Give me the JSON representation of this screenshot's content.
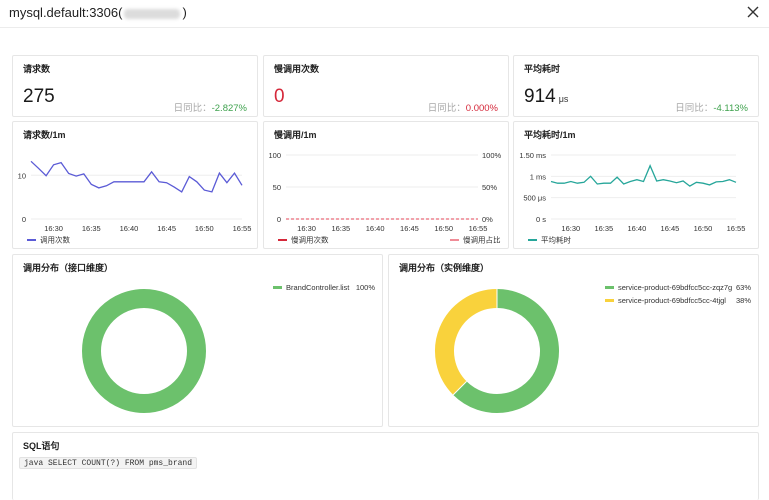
{
  "window": {
    "title_prefix": "mysql.default:3306(",
    "title_suffix": ")"
  },
  "stats": {
    "requests": {
      "title": "请求数",
      "value": "275",
      "unit": "",
      "compare_label": "日同比：",
      "compare_value": "-2.827%"
    },
    "slow_calls": {
      "title": "慢调用次数",
      "value": "0",
      "unit": "",
      "compare_label": "日同比：",
      "compare_value": "0.000%"
    },
    "avg_latency": {
      "title": "平均耗时",
      "value": "914",
      "unit": "μs",
      "compare_label": "日同比：",
      "compare_value": "-4.113%"
    }
  },
  "charts": {
    "requests_per_min": {
      "title": "请求数/1m",
      "legend": "调用次数"
    },
    "slow_per_min": {
      "title": "慢调用/1m",
      "legend_left": "慢调用次数",
      "legend_right": "慢调用占比"
    },
    "latency_per_min": {
      "title": "平均耗时/1m",
      "legend": "平均耗时"
    },
    "dist_interface": {
      "title": "调用分布（接口维度）"
    },
    "dist_instance": {
      "title": "调用分布（实例维度）"
    }
  },
  "chart_data": [
    {
      "type": "line",
      "name": "requests_per_min",
      "x": [
        "16:27",
        "16:28",
        "16:29",
        "16:30",
        "16:31",
        "16:32",
        "16:33",
        "16:34",
        "16:35",
        "16:36",
        "16:37",
        "16:38",
        "16:39",
        "16:40",
        "16:41",
        "16:42",
        "16:43",
        "16:44",
        "16:45",
        "16:46",
        "16:47",
        "16:48",
        "16:49",
        "16:50",
        "16:51",
        "16:52",
        "16:53",
        "16:54",
        "16:55"
      ],
      "xticks": [
        "16:30",
        "16:35",
        "16:40",
        "16:45",
        "16:50",
        "16:55"
      ],
      "series": [
        {
          "name": "调用次数",
          "color": "#5b5bd6",
          "values": [
            13.2,
            11.6,
            9.9,
            12.4,
            12.9,
            10.4,
            9.8,
            10.3,
            7.9,
            7.1,
            7.6,
            8.5,
            8.5,
            8.5,
            8.5,
            8.5,
            10.8,
            8.5,
            8.3,
            7.3,
            6.2,
            9.7,
            8.5,
            6.6,
            6.2,
            10.5,
            8.3,
            10.5,
            7.7
          ]
        }
      ],
      "yticks": [
        "0",
        "10"
      ],
      "ylim": [
        0,
        16
      ]
    },
    {
      "type": "line",
      "name": "slow_per_min",
      "x": [
        "16:27",
        "16:28",
        "16:29",
        "16:30",
        "16:31",
        "16:32",
        "16:33",
        "16:34",
        "16:35",
        "16:36",
        "16:37",
        "16:38",
        "16:39",
        "16:40",
        "16:41",
        "16:42",
        "16:43",
        "16:44",
        "16:45",
        "16:46",
        "16:47",
        "16:48",
        "16:49",
        "16:50",
        "16:51",
        "16:52",
        "16:53",
        "16:54",
        "16:55"
      ],
      "xticks": [
        "16:30",
        "16:35",
        "16:40",
        "16:45",
        "16:50",
        "16:55"
      ],
      "series": [
        {
          "name": "慢调用次数",
          "color": "#d5283a",
          "axis": "left",
          "values": [
            0,
            0,
            0,
            0,
            0,
            0,
            0,
            0,
            0,
            0,
            0,
            0,
            0,
            0,
            0,
            0,
            0,
            0,
            0,
            0,
            0,
            0,
            0,
            0,
            0,
            0,
            0,
            0,
            0
          ]
        },
        {
          "name": "慢调用占比",
          "color": "#f08c97",
          "axis": "right",
          "values": [
            0,
            0,
            0,
            0,
            0,
            0,
            0,
            0,
            0,
            0,
            0,
            0,
            0,
            0,
            0,
            0,
            0,
            0,
            0,
            0,
            0,
            0,
            0,
            0,
            0,
            0,
            0,
            0,
            0
          ]
        }
      ],
      "yticks_left": [
        "0",
        "50",
        "100"
      ],
      "yticks_right": [
        "0%",
        "50%",
        "100%"
      ],
      "ylim": [
        0,
        100
      ]
    },
    {
      "type": "line",
      "name": "latency_per_min",
      "x": [
        "16:27",
        "16:28",
        "16:29",
        "16:30",
        "16:31",
        "16:32",
        "16:33",
        "16:34",
        "16:35",
        "16:36",
        "16:37",
        "16:38",
        "16:39",
        "16:40",
        "16:41",
        "16:42",
        "16:43",
        "16:44",
        "16:45",
        "16:46",
        "16:47",
        "16:48",
        "16:49",
        "16:50",
        "16:51",
        "16:52",
        "16:53",
        "16:54",
        "16:55"
      ],
      "xticks": [
        "16:30",
        "16:35",
        "16:40",
        "16:45",
        "16:50",
        "16:55"
      ],
      "series": [
        {
          "name": "平均耗时",
          "color": "#26a69a",
          "values": [
            0.88,
            0.84,
            0.84,
            0.88,
            0.84,
            0.86,
            1.0,
            0.82,
            0.84,
            0.84,
            0.98,
            0.82,
            0.88,
            0.92,
            0.88,
            1.25,
            0.89,
            0.92,
            0.89,
            0.85,
            0.89,
            0.77,
            0.86,
            0.84,
            0.8,
            0.87,
            0.88,
            0.92,
            0.86
          ]
        }
      ],
      "yticks": [
        "0 s",
        "500 μs",
        "1 ms",
        "1.50 ms"
      ],
      "ylim": [
        0,
        1.5
      ]
    },
    {
      "type": "pie",
      "name": "dist_interface",
      "slices": [
        {
          "label": "BrandController.list",
          "value": 100,
          "display": "100%",
          "color": "#6cc16c"
        }
      ]
    },
    {
      "type": "pie",
      "name": "dist_instance",
      "slices": [
        {
          "label": "service-product-69bdfcc5cc-zqz7g",
          "value": 62.5,
          "display": "63%",
          "color": "#6cc16c"
        },
        {
          "label": "service-product-69bdfcc5cc-4tjgl",
          "value": 37.5,
          "display": "38%",
          "color": "#f9d23c"
        }
      ]
    }
  ],
  "sql": {
    "title": "SQL语句",
    "code": "java SELECT COUNT(?) FROM pms_brand"
  }
}
